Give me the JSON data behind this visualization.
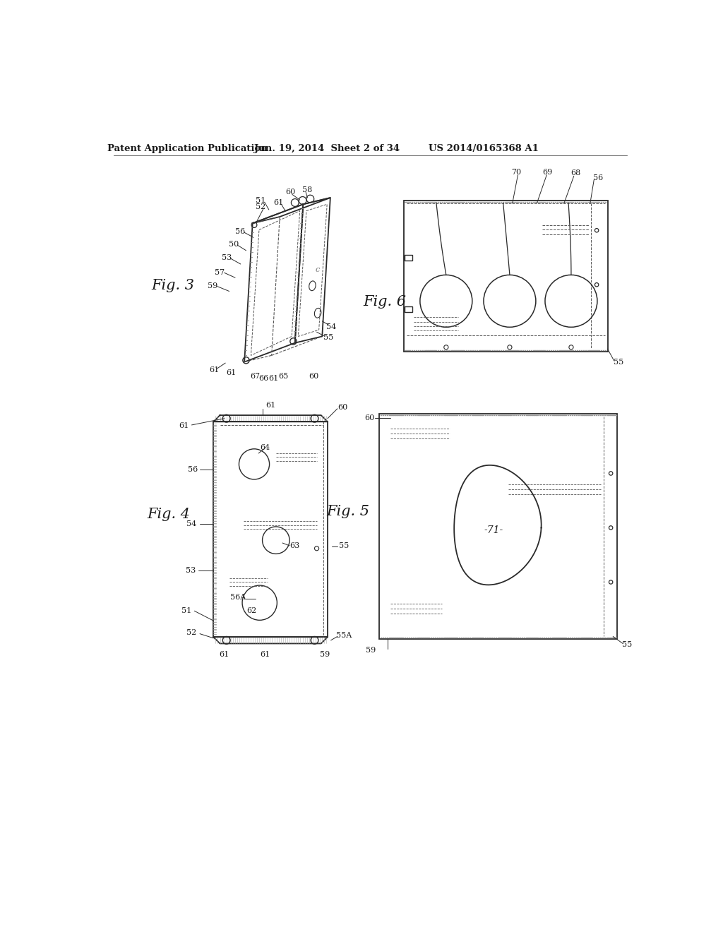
{
  "bg_color": "#ffffff",
  "header_text1": "Patent Application Publication",
  "header_text2": "Jun. 19, 2014  Sheet 2 of 34",
  "header_text3": "US 2014/0165368 A1",
  "fig3_label": "Fig. 3",
  "fig4_label": "Fig. 4",
  "fig5_label": "Fig. 5",
  "fig6_label": "Fig. 6",
  "lc": "#2a2a2a",
  "dc": "#555555",
  "tc": "#1a1a1a",
  "knurl_color": "#888888"
}
